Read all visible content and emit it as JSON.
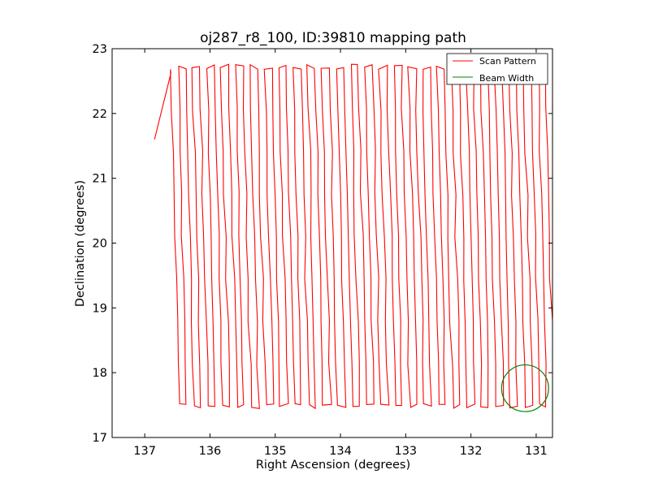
{
  "chart_data": {
    "type": "line",
    "title": "oj287_r8_100, ID:39810 mapping path",
    "xlabel": "Right Ascension (degrees)",
    "ylabel": "Declination (degrees)",
    "xlim": [
      137.5,
      130.75
    ],
    "ylim": [
      17,
      23
    ],
    "x_inverted": true,
    "xticks": [
      137,
      136,
      135,
      134,
      133,
      132,
      131
    ],
    "yticks": [
      17,
      18,
      19,
      20,
      21,
      22,
      23
    ],
    "grid": false,
    "legend": {
      "position": "upper right",
      "entries": [
        "Scan Pattern",
        "Beam Width"
      ]
    },
    "series": [
      {
        "name": "Scan Pattern",
        "kind": "raster-scan",
        "color": "#ff0000",
        "scan_count": 54,
        "ra_start": 136.6,
        "ra_end": 130.75,
        "dec_min": 17.47,
        "dec_max": 22.72,
        "start_point": {
          "ra": 136.85,
          "dec": 21.6
        }
      },
      {
        "name": "Beam Width",
        "kind": "circle",
        "color": "#008000",
        "center": {
          "ra": 131.17,
          "dec": 17.76
        },
        "radius_deg": 0.36
      }
    ]
  }
}
